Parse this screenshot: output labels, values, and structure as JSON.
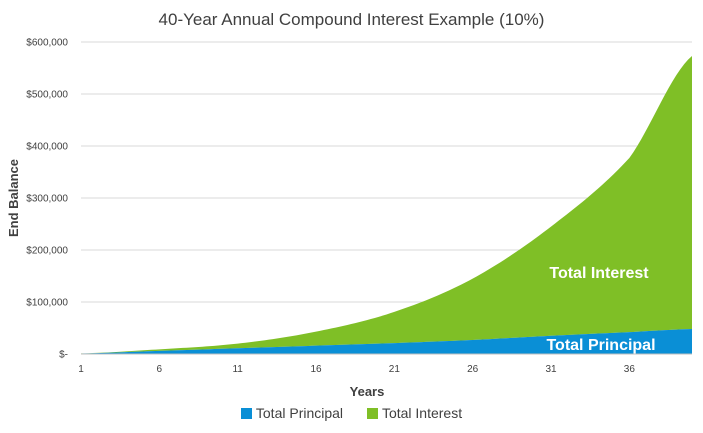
{
  "chart_data": {
    "type": "area",
    "stacked": true,
    "title": "40-Year Annual Compound Interest Example (10%)",
    "xlabel": "Years",
    "ylabel": "End Balance",
    "x_tick_labels": [
      "1",
      "6",
      "11",
      "16",
      "21",
      "26",
      "31",
      "36"
    ],
    "y_tick_labels": [
      "$-",
      "$100,000",
      "$200,000",
      "$300,000",
      "$400,000",
      "$500,000",
      "$600,000"
    ],
    "ylim": [
      0,
      600000
    ],
    "xlim": [
      1,
      40
    ],
    "grid": true,
    "legend": "bottom",
    "annotations": [
      "Total Interest",
      "Total Principal"
    ],
    "series": [
      {
        "name": "Total Principal",
        "color": "#0a8fd6",
        "x": [
          1,
          6,
          11,
          16,
          21,
          26,
          31,
          36,
          40
        ],
        "values": [
          1000,
          6000,
          11000,
          16000,
          21000,
          27000,
          35000,
          42000,
          48000
        ]
      },
      {
        "name": "Total Interest",
        "color": "#7fbf26",
        "x": [
          1,
          6,
          11,
          16,
          21,
          26,
          31,
          36,
          40
        ],
        "values": [
          100,
          3000,
          9000,
          27000,
          60000,
          118000,
          210000,
          335000,
          525000
        ]
      }
    ]
  }
}
